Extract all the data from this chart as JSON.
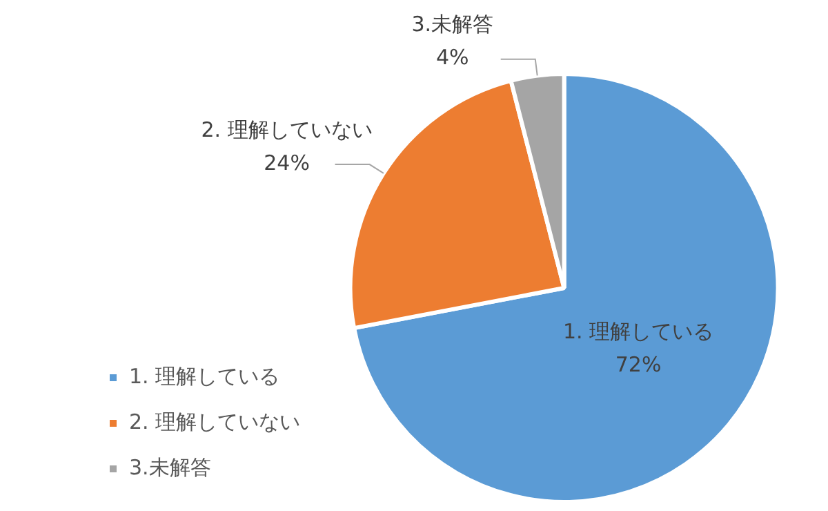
{
  "chart_data": {
    "type": "pie",
    "categories": [
      "1. 理解している",
      "2. 理解していない",
      "3.未解答"
    ],
    "values": [
      72,
      24,
      4
    ],
    "colors": [
      "#5b9bd5",
      "#ed7d31",
      "#a5a5a5"
    ],
    "value_labels": [
      "72%",
      "24%",
      "4%"
    ],
    "legend": "bottom left"
  }
}
